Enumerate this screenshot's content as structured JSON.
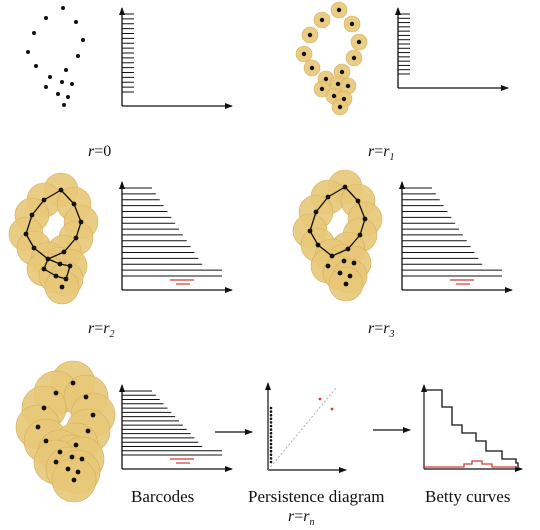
{
  "colors": {
    "ball_fill": "#e8c878",
    "ball_stroke": "#d4b060",
    "point": "#111111",
    "edge": "#111111",
    "bar": "#111111",
    "bar_h1": "#d63a3a",
    "diagonal": "#9a9a9a",
    "curve_h0": "#111111",
    "curve_h1": "#d63a3a"
  },
  "stages": [
    {
      "radius_symbol": "r",
      "eq": "=",
      "radius_value": "0",
      "radius_sub": ""
    },
    {
      "radius_symbol": "r",
      "eq": "=",
      "radius_value": "r",
      "radius_sub": "1"
    },
    {
      "radius_symbol": "r",
      "eq": "=",
      "radius_value": "r",
      "radius_sub": "2"
    },
    {
      "radius_symbol": "r",
      "eq": "=",
      "radius_value": "r",
      "radius_sub": "3"
    },
    {
      "radius_symbol": "r",
      "eq": "=",
      "radius_value": "r",
      "radius_sub": "n"
    }
  ],
  "outputs": {
    "barcodes": "Barcodes",
    "persistence_diagram": "Persistence diagram",
    "betti_curves": "Betty curves"
  },
  "point_cloud": {
    "count": 16,
    "shape": "loop with tail"
  },
  "barcodes": {
    "h0_bar_count": 17,
    "h1_bar_count": 2
  },
  "persistence_diagram": {
    "h0_points": 16,
    "h1_points": 2
  }
}
